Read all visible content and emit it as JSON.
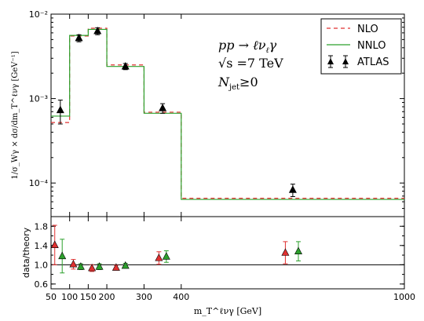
{
  "chart_data": [
    {
      "type": "step-histogram",
      "ylabel": "1/σ_Wγ × dσ/dm_T^ℓνγ [GeV⁻¹]",
      "yscale": "log",
      "ylim": [
        4e-05,
        0.01
      ],
      "ytick_labels": [
        "10⁻²",
        "10⁻³",
        "10⁻⁴"
      ],
      "bin_edges": [
        50,
        100,
        150,
        200,
        300,
        400,
        1000
      ],
      "series": [
        {
          "name": "NLO",
          "color": "#e03030",
          "style": "dashed",
          "values": [
            0.00052,
            0.0055,
            0.0068,
            0.0025,
            0.00069,
            6.6e-05
          ]
        },
        {
          "name": "NNLO",
          "color": "#2ca02c",
          "style": "solid",
          "values": [
            0.00062,
            0.0056,
            0.0066,
            0.0024,
            0.00067,
            6.4e-05
          ]
        }
      ],
      "data_series": {
        "name": "ATLAS",
        "x": [
          75,
          125,
          175,
          250,
          350,
          700
        ],
        "y": [
          0.00073,
          0.0052,
          0.0063,
          0.0024,
          0.00077,
          8.3e-05
        ],
        "err_low": [
          0.00023,
          0.0005,
          0.0006,
          0.0002,
          0.0001,
          1.4e-05
        ],
        "err_high": [
          0.00023,
          0.0005,
          0.0006,
          0.0002,
          0.0001,
          1.4e-05
        ]
      },
      "legend": {
        "placement": "top-right",
        "entries": [
          "NLO",
          "NNLO",
          "ATLAS"
        ]
      },
      "annotations": {
        "process": "pp → ℓν",
        "process_sub": "ℓ",
        "process_tail": "γ",
        "energy": "√s =7 TeV",
        "jets_prefix": "N",
        "jets_sub": "jet",
        "jets_cut": "≥0"
      }
    },
    {
      "type": "ratio",
      "ylabel": "data/theory",
      "ylim": [
        0.5,
        2.0
      ],
      "yticks": [
        0.6,
        1.0,
        1.4,
        1.8
      ],
      "ytick_labels": [
        "0.6",
        "1.0",
        "1.4",
        "1.8"
      ],
      "xlabel": "m_T^ℓνγ [GeV]",
      "xlim": [
        50,
        1000
      ],
      "xticks": [
        50,
        100,
        150,
        200,
        300,
        400,
        1000
      ],
      "xtick_labels": [
        "50",
        "100",
        "150",
        "200",
        "300",
        "400",
        "1000"
      ],
      "reference_line": 1.0,
      "series": [
        {
          "name": "NLO",
          "color": "#e03030",
          "x": [
            60,
            110,
            160,
            225,
            340,
            680
          ],
          "y": [
            1.41,
            1.01,
            0.93,
            0.94,
            1.14,
            1.25
          ],
          "err": [
            0.41,
            0.1,
            0.07,
            0.05,
            0.13,
            0.23
          ]
        },
        {
          "name": "NNLO",
          "color": "#2ca02c",
          "x": [
            80,
            130,
            180,
            250,
            360,
            715
          ],
          "y": [
            1.18,
            0.96,
            0.96,
            0.98,
            1.17,
            1.28
          ],
          "err": [
            0.35,
            0.06,
            0.06,
            0.05,
            0.12,
            0.2
          ]
        }
      ]
    }
  ]
}
